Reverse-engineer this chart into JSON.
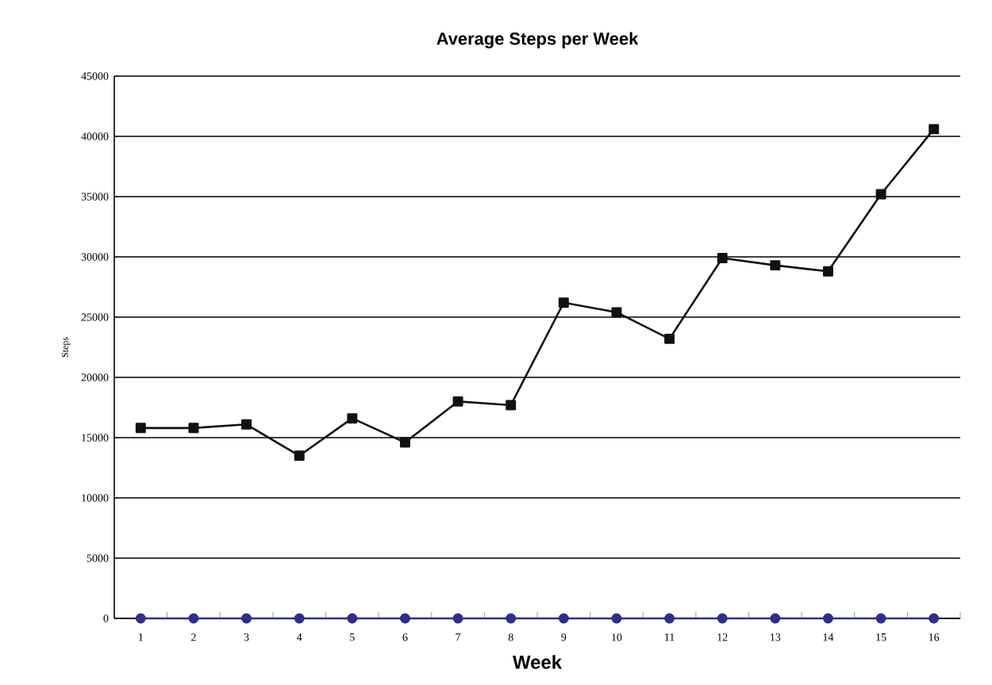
{
  "chart_data": {
    "type": "line",
    "title": "Average Steps per Week",
    "xlabel": "Week",
    "ylabel": "Steps",
    "categories": [
      "1",
      "2",
      "3",
      "4",
      "5",
      "6",
      "7",
      "8",
      "9",
      "10",
      "11",
      "12",
      "13",
      "14",
      "15",
      "16"
    ],
    "series": [
      {
        "color": "#111111",
        "marker": "square",
        "values": [
          15800,
          15800,
          16100,
          13500,
          16600,
          14600,
          18000,
          17700,
          26200,
          25400,
          23200,
          29900,
          29300,
          28800,
          35200,
          40600
        ]
      },
      {
        "color": "#2e2e8c",
        "marker": "circle",
        "values": [
          0,
          0,
          0,
          0,
          0,
          0,
          0,
          0,
          0,
          0,
          0,
          0,
          0,
          0,
          0,
          0
        ]
      }
    ],
    "ylim": [
      0,
      45000
    ],
    "yticks": [
      0,
      5000,
      10000,
      15000,
      20000,
      25000,
      30000,
      35000,
      40000,
      45000
    ],
    "grid": "y"
  }
}
